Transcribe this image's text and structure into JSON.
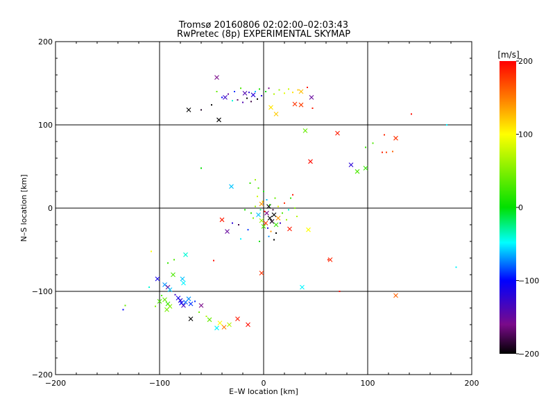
{
  "chart_data": {
    "type": "scatter",
    "title": "Tromsø 20160806 02:02:00–02:03:43",
    "subtitle": "RwPretec (8p) EXPERIMENTAL SKYMAP",
    "xlabel": "E–W location [km]",
    "ylabel": "N–S location [km]",
    "xlim": [
      -200,
      200
    ],
    "ylim": [
      -200,
      200
    ],
    "xticks": [
      "−200",
      "−100",
      "0",
      "100",
      "200"
    ],
    "yticks": [
      "−200",
      "−100",
      "0",
      "100",
      "200"
    ],
    "grid": true,
    "colorbar": {
      "label": "[m/s]",
      "range": [
        -200,
        200
      ],
      "ticks": [
        "−200",
        "−100",
        "0",
        "100",
        "200"
      ]
    },
    "series": [
      {
        "marker": "cross",
        "points": [
          {
            "x": -45,
            "y": 157,
            "v": -160
          },
          {
            "x": -37,
            "y": 133,
            "v": -130
          },
          {
            "x": -18,
            "y": 138,
            "v": -140
          },
          {
            "x": -10,
            "y": 136,
            "v": -120
          },
          {
            "x": -72,
            "y": 118,
            "v": -200
          },
          {
            "x": -43,
            "y": 106,
            "v": -200
          },
          {
            "x": 7,
            "y": 121,
            "v": 110
          },
          {
            "x": 12,
            "y": 113,
            "v": 120
          },
          {
            "x": 30,
            "y": 125,
            "v": 180
          },
          {
            "x": 36,
            "y": 124,
            "v": 175
          },
          {
            "x": 36,
            "y": 140,
            "v": 125
          },
          {
            "x": 46,
            "y": 133,
            "v": -150
          },
          {
            "x": 40,
            "y": 93,
            "v": 40
          },
          {
            "x": 71,
            "y": 90,
            "v": 190
          },
          {
            "x": 127,
            "y": 84,
            "v": 180
          },
          {
            "x": 45,
            "y": 56,
            "v": 195
          },
          {
            "x": 84,
            "y": 52,
            "v": -120
          },
          {
            "x": 90,
            "y": 44,
            "v": 30
          },
          {
            "x": 98,
            "y": 48,
            "v": 20
          },
          {
            "x": -31,
            "y": 26,
            "v": -60
          },
          {
            "x": -40,
            "y": -14,
            "v": 190
          },
          {
            "x": -35,
            "y": -28,
            "v": -150
          },
          {
            "x": 25,
            "y": -25,
            "v": 190
          },
          {
            "x": 43,
            "y": -26,
            "v": 100
          },
          {
            "x": 64,
            "y": -62,
            "v": 185
          },
          {
            "x": -75,
            "y": -56,
            "v": -40
          },
          {
            "x": -2,
            "y": -78,
            "v": 180
          },
          {
            "x": 37,
            "y": -95,
            "v": -50
          },
          {
            "x": 127,
            "y": -105,
            "v": 160
          },
          {
            "x": -102,
            "y": -85,
            "v": -110
          },
          {
            "x": -95,
            "y": -92,
            "v": -70
          },
          {
            "x": -92,
            "y": -95,
            "v": -150
          },
          {
            "x": -90,
            "y": -98,
            "v": -60
          },
          {
            "x": -87,
            "y": -80,
            "v": 30
          },
          {
            "x": -78,
            "y": -85,
            "v": -60
          },
          {
            "x": -77,
            "y": -90,
            "v": -50
          },
          {
            "x": -100,
            "y": -112,
            "v": 30
          },
          {
            "x": -95,
            "y": -110,
            "v": 40
          },
          {
            "x": -92,
            "y": -115,
            "v": 20
          },
          {
            "x": -90,
            "y": -118,
            "v": 50
          },
          {
            "x": -82,
            "y": -108,
            "v": -110
          },
          {
            "x": -80,
            "y": -111,
            "v": -120
          },
          {
            "x": -79,
            "y": -114,
            "v": -100
          },
          {
            "x": -77,
            "y": -117,
            "v": -130
          },
          {
            "x": -75,
            "y": -113,
            "v": -80
          },
          {
            "x": -72,
            "y": -109,
            "v": -70
          },
          {
            "x": -70,
            "y": -115,
            "v": -90
          },
          {
            "x": -93,
            "y": -122,
            "v": 45
          },
          {
            "x": -60,
            "y": -117,
            "v": -160
          },
          {
            "x": -70,
            "y": -133,
            "v": -200
          },
          {
            "x": -52,
            "y": -134,
            "v": 40
          },
          {
            "x": -42,
            "y": -138,
            "v": 100
          },
          {
            "x": -38,
            "y": -143,
            "v": 150
          },
          {
            "x": -33,
            "y": -140,
            "v": 70
          },
          {
            "x": -45,
            "y": -144,
            "v": -50
          },
          {
            "x": -25,
            "y": -133,
            "v": 190
          },
          {
            "x": -15,
            "y": -140,
            "v": 195
          },
          {
            "x": -2,
            "y": 5,
            "v": 140
          },
          {
            "x": 3,
            "y": -6,
            "v": -160
          },
          {
            "x": 6,
            "y": -12,
            "v": -200
          },
          {
            "x": 8,
            "y": -16,
            "v": -190
          },
          {
            "x": -2,
            "y": -15,
            "v": 60
          },
          {
            "x": 2,
            "y": -18,
            "v": 180
          },
          {
            "x": 10,
            "y": -8,
            "v": -200
          },
          {
            "x": 12,
            "y": -20,
            "v": 20
          },
          {
            "x": -5,
            "y": -8,
            "v": -60
          },
          {
            "x": 0,
            "y": -22,
            "v": 30
          },
          {
            "x": 5,
            "y": 2,
            "v": -200
          },
          {
            "x": 14,
            "y": -12,
            "v": 140
          }
        ]
      },
      {
        "marker": "dot",
        "points": [
          {
            "x": -40,
            "y": 133,
            "v": -100
          },
          {
            "x": -34,
            "y": 137,
            "v": -150
          },
          {
            "x": -28,
            "y": 140,
            "v": -90
          },
          {
            "x": -25,
            "y": 130,
            "v": -170
          },
          {
            "x": -22,
            "y": 144,
            "v": 30
          },
          {
            "x": -20,
            "y": 127,
            "v": -140
          },
          {
            "x": -16,
            "y": 132,
            "v": -200
          },
          {
            "x": -14,
            "y": 139,
            "v": -120
          },
          {
            "x": -12,
            "y": 128,
            "v": -180
          },
          {
            "x": -8,
            "y": 140,
            "v": -60
          },
          {
            "x": -6,
            "y": 131,
            "v": -200
          },
          {
            "x": -4,
            "y": 143,
            "v": 10
          },
          {
            "x": -2,
            "y": 135,
            "v": -120
          },
          {
            "x": 2,
            "y": 140,
            "v": 0
          },
          {
            "x": 5,
            "y": 144,
            "v": -160
          },
          {
            "x": 10,
            "y": 137,
            "v": 70
          },
          {
            "x": 15,
            "y": 142,
            "v": 60
          },
          {
            "x": 20,
            "y": 138,
            "v": 90
          },
          {
            "x": 24,
            "y": 143,
            "v": 80
          },
          {
            "x": 28,
            "y": 139,
            "v": 110
          },
          {
            "x": 33,
            "y": 142,
            "v": 120
          },
          {
            "x": 42,
            "y": 145,
            "v": 190
          },
          {
            "x": 47,
            "y": 120,
            "v": 190
          },
          {
            "x": -50,
            "y": 124,
            "v": -200
          },
          {
            "x": -60,
            "y": 118,
            "v": -190
          },
          {
            "x": -30,
            "y": 129,
            "v": -40
          },
          {
            "x": -45,
            "y": 140,
            "v": 40
          },
          {
            "x": 142,
            "y": 113,
            "v": 195
          },
          {
            "x": 176,
            "y": 100,
            "v": -50
          },
          {
            "x": 116,
            "y": 88,
            "v": 185
          },
          {
            "x": 98,
            "y": 73,
            "v": 20
          },
          {
            "x": 105,
            "y": 78,
            "v": 30
          },
          {
            "x": 118,
            "y": 67,
            "v": 175
          },
          {
            "x": 124,
            "y": 68,
            "v": 160
          },
          {
            "x": 114,
            "y": 67,
            "v": 190
          },
          {
            "x": -60,
            "y": 48,
            "v": 0
          },
          {
            "x": 62,
            "y": -62,
            "v": 190
          },
          {
            "x": 73,
            "y": -100,
            "v": 195
          },
          {
            "x": 185,
            "y": -71,
            "v": -50
          },
          {
            "x": -108,
            "y": -52,
            "v": 100
          },
          {
            "x": -92,
            "y": -66,
            "v": 20
          },
          {
            "x": -86,
            "y": -62,
            "v": 30
          },
          {
            "x": -48,
            "y": -63,
            "v": 195
          },
          {
            "x": -133,
            "y": -117,
            "v": 40
          },
          {
            "x": -135,
            "y": -122,
            "v": -100
          },
          {
            "x": -22,
            "y": -37,
            "v": -50
          },
          {
            "x": -30,
            "y": -18,
            "v": -120
          },
          {
            "x": -24,
            "y": -20,
            "v": -180
          },
          {
            "x": -12,
            "y": -6,
            "v": 20
          },
          {
            "x": -10,
            "y": -12,
            "v": 50
          },
          {
            "x": -8,
            "y": 2,
            "v": 60
          },
          {
            "x": -6,
            "y": 14,
            "v": 80
          },
          {
            "x": -5,
            "y": 24,
            "v": 30
          },
          {
            "x": -3,
            "y": -2,
            "v": -20
          },
          {
            "x": -1,
            "y": 8,
            "v": 120
          },
          {
            "x": 1,
            "y": -4,
            "v": 190
          },
          {
            "x": 3,
            "y": 10,
            "v": -60
          },
          {
            "x": 4,
            "y": -24,
            "v": -120
          },
          {
            "x": 6,
            "y": 4,
            "v": 10
          },
          {
            "x": 7,
            "y": -28,
            "v": 140
          },
          {
            "x": 9,
            "y": -2,
            "v": -180
          },
          {
            "x": 11,
            "y": 12,
            "v": 40
          },
          {
            "x": 12,
            "y": -30,
            "v": -200
          },
          {
            "x": 14,
            "y": 2,
            "v": 90
          },
          {
            "x": 16,
            "y": -18,
            "v": -130
          },
          {
            "x": 18,
            "y": -6,
            "v": 30
          },
          {
            "x": 20,
            "y": 6,
            "v": 185
          },
          {
            "x": 22,
            "y": -14,
            "v": 60
          },
          {
            "x": 24,
            "y": -2,
            "v": -40
          },
          {
            "x": 26,
            "y": 12,
            "v": 20
          },
          {
            "x": 30,
            "y": 0,
            "v": 50
          },
          {
            "x": 32,
            "y": -10,
            "v": 70
          },
          {
            "x": -15,
            "y": -26,
            "v": -90
          },
          {
            "x": -13,
            "y": 30,
            "v": 20
          },
          {
            "x": -8,
            "y": 34,
            "v": 60
          },
          {
            "x": 0,
            "y": 20,
            "v": 10
          },
          {
            "x": 5,
            "y": -34,
            "v": -70
          },
          {
            "x": -18,
            "y": -2,
            "v": 10
          },
          {
            "x": 28,
            "y": 16,
            "v": 190
          },
          {
            "x": 10,
            "y": -38,
            "v": -200
          },
          {
            "x": -4,
            "y": -40,
            "v": 0
          },
          {
            "x": -110,
            "y": -95,
            "v": -40
          },
          {
            "x": -98,
            "y": -105,
            "v": 30
          },
          {
            "x": -104,
            "y": -118,
            "v": 50
          },
          {
            "x": -85,
            "y": -104,
            "v": -130
          },
          {
            "x": -66,
            "y": -112,
            "v": -90
          },
          {
            "x": -62,
            "y": -125,
            "v": 40
          },
          {
            "x": -55,
            "y": -130,
            "v": 70
          }
        ]
      }
    ]
  }
}
